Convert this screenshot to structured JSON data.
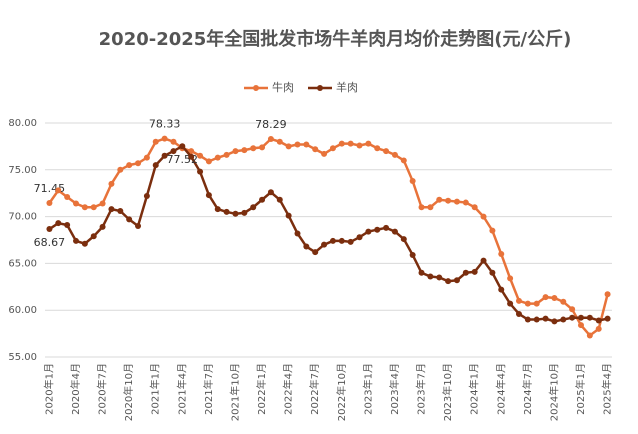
{
  "chart_data": {
    "type": "line",
    "title": "2020-2025年全国批发市场牛羊肉月均价走势图(元/公斤)",
    "categories": [
      "2020年1月",
      null,
      null,
      "2020年4月",
      null,
      null,
      "2020年7月",
      null,
      null,
      "2020年10月",
      null,
      null,
      "2021年1月",
      null,
      null,
      "2021年4月",
      null,
      null,
      "2021年7月",
      null,
      null,
      "2021年10月",
      null,
      null,
      "2022年1月",
      null,
      null,
      "2022年4月",
      null,
      null,
      "2022年7月",
      null,
      null,
      "2022年10月",
      null,
      null,
      "2023年1月",
      null,
      null,
      "2023年4月",
      null,
      null,
      "2023年7月",
      null,
      null,
      "2023年10月",
      null,
      null,
      "2024年1月",
      null,
      null,
      "2024年4月",
      null,
      null,
      "2024年7月",
      null,
      null,
      "2024年10月",
      null,
      null,
      "2025年1月",
      null,
      null,
      "2025年4月"
    ],
    "series": [
      {
        "name": "牛肉",
        "color": "#e8733a",
        "values": [
          71.45,
          72.8,
          72.1,
          71.4,
          71.0,
          71.0,
          71.4,
          73.5,
          75.0,
          75.5,
          75.7,
          76.3,
          78.0,
          78.33,
          78.0,
          77.3,
          77.0,
          76.5,
          75.9,
          76.3,
          76.6,
          77.0,
          77.1,
          77.3,
          77.4,
          78.29,
          78.0,
          77.5,
          77.7,
          77.7,
          77.2,
          76.7,
          77.3,
          77.8,
          77.8,
          77.6,
          77.8,
          77.3,
          77.0,
          76.6,
          76.0,
          73.8,
          71.0,
          71.0,
          71.8,
          71.7,
          71.6,
          71.5,
          71.0,
          70.0,
          68.5,
          66.0,
          63.4,
          61.0,
          60.7,
          60.7,
          61.4,
          61.3,
          60.9,
          60.1,
          58.4,
          57.3,
          58.0,
          61.7
        ],
        "value_labels": [
          "71.45",
          null,
          null,
          null,
          null,
          null,
          null,
          null,
          null,
          null,
          null,
          null,
          null,
          "78.33",
          null,
          null,
          null,
          null,
          null,
          null,
          null,
          null,
          null,
          null,
          null,
          "78.29",
          null,
          null,
          null,
          null,
          null,
          null,
          null,
          null,
          null,
          null,
          null,
          null,
          null,
          null,
          null,
          null,
          null,
          null,
          null,
          null,
          null,
          null,
          null,
          null,
          null,
          null,
          null,
          null,
          null,
          null,
          null,
          null,
          null,
          null,
          null,
          null,
          null,
          null
        ]
      },
      {
        "name": "羊肉",
        "color": "#7b2e0e",
        "values": [
          68.67,
          69.3,
          69.1,
          67.4,
          67.1,
          67.9,
          68.9,
          70.8,
          70.6,
          69.7,
          69.0,
          72.2,
          75.5,
          76.5,
          77.0,
          77.52,
          76.4,
          74.8,
          72.3,
          70.8,
          70.5,
          70.3,
          70.4,
          71.0,
          71.8,
          72.6,
          71.8,
          70.1,
          68.2,
          66.8,
          66.2,
          67.0,
          67.4,
          67.4,
          67.3,
          67.8,
          68.4,
          68.6,
          68.8,
          68.4,
          67.6,
          65.9,
          64.0,
          63.6,
          63.5,
          63.1,
          63.2,
          64.0,
          64.1,
          65.3,
          64.0,
          62.2,
          60.7,
          59.6,
          59.0,
          59.0,
          59.1,
          58.8,
          59.0,
          59.2,
          59.2,
          59.2,
          58.9,
          59.1
        ],
        "value_labels": [
          "68.67",
          null,
          null,
          null,
          null,
          null,
          null,
          null,
          null,
          null,
          null,
          null,
          null,
          null,
          null,
          "77.52",
          null,
          null,
          null,
          null,
          null,
          null,
          null,
          null,
          null,
          null,
          null,
          null,
          null,
          null,
          null,
          null,
          null,
          null,
          null,
          null,
          null,
          null,
          null,
          null,
          null,
          null,
          null,
          null,
          null,
          null,
          null,
          null,
          null,
          null,
          null,
          null,
          null,
          null,
          null,
          null,
          null,
          null,
          null,
          null,
          null,
          null,
          null,
          null
        ]
      }
    ],
    "ylim": [
      55,
      80
    ],
    "yticks": [
      {
        "value": 55,
        "label": "55.00"
      },
      {
        "value": 60,
        "label": "60.00"
      },
      {
        "value": 65,
        "label": "65.00"
      },
      {
        "value": 70,
        "label": "70.00"
      },
      {
        "value": 75,
        "label": "75.00"
      },
      {
        "value": 80,
        "label": "80.00"
      }
    ],
    "grid": true
  }
}
